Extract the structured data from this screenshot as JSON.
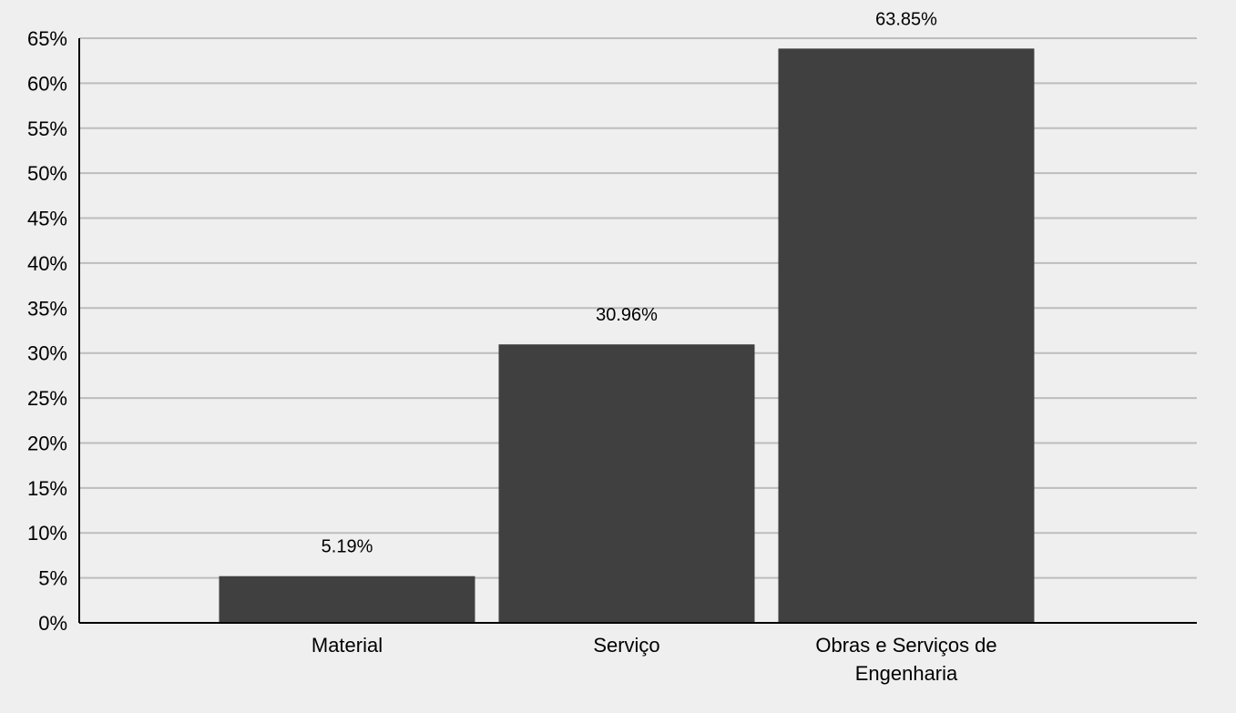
{
  "chart_data": {
    "type": "bar",
    "categories": [
      "Material",
      "Serviço",
      "Obras e Serviços de Engenharia"
    ],
    "category_label_lines": [
      [
        "Material"
      ],
      [
        "Serviço"
      ],
      [
        "Obras e Serviços de",
        "Engenharia"
      ]
    ],
    "values": [
      5.19,
      30.96,
      63.85
    ],
    "data_labels": [
      "5.19%",
      "30.96%",
      "63.85%"
    ],
    "title": "",
    "xlabel": "",
    "ylabel": "",
    "ylim": [
      0,
      65
    ],
    "yticks": [
      0,
      5,
      10,
      15,
      20,
      25,
      30,
      35,
      40,
      45,
      50,
      55,
      60,
      65
    ],
    "ytick_labels": [
      "0%",
      "5%",
      "10%",
      "15%",
      "20%",
      "25%",
      "30%",
      "35%",
      "40%",
      "45%",
      "50%",
      "55%",
      "60%",
      "65%"
    ],
    "grid": true,
    "legend": "none",
    "colors": {
      "background": "#efefef",
      "bar": "#404040",
      "grid": "#bdbdbd",
      "axis": "#000000",
      "text": "#000000"
    }
  }
}
